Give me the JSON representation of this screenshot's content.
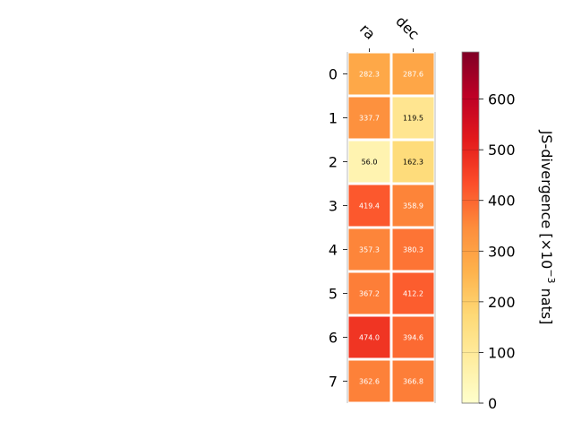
{
  "chart_data": {
    "type": "heatmap",
    "columns": [
      "ra",
      "dec"
    ],
    "rows": [
      "0",
      "1",
      "2",
      "3",
      "4",
      "5",
      "6",
      "7"
    ],
    "values": [
      [
        282.3,
        287.6
      ],
      [
        337.7,
        119.5
      ],
      [
        56.0,
        162.3
      ],
      [
        419.4,
        358.9
      ],
      [
        357.3,
        380.3
      ],
      [
        367.2,
        412.2
      ],
      [
        474.0,
        394.6
      ],
      [
        362.6,
        366.8
      ]
    ],
    "value_labels": [
      [
        "282.3",
        "287.6"
      ],
      [
        "337.7",
        "119.5"
      ],
      [
        "56.0",
        "162.3"
      ],
      [
        "419.4",
        "358.9"
      ],
      [
        "357.3",
        "380.3"
      ],
      [
        "367.2",
        "412.2"
      ],
      [
        "474.0",
        "394.6"
      ],
      [
        "362.6",
        "366.8"
      ]
    ],
    "colorbar": {
      "label_prefix": "JS-divergence [×10",
      "label_exponent": "−3",
      "label_suffix": " nats]",
      "range": [
        0,
        693
      ],
      "ticks": [
        0,
        100,
        200,
        300,
        400,
        500,
        600
      ],
      "tick_labels": [
        "0",
        "100",
        "200",
        "300",
        "400",
        "500",
        "600"
      ],
      "colormap": "YlOrRd"
    }
  }
}
